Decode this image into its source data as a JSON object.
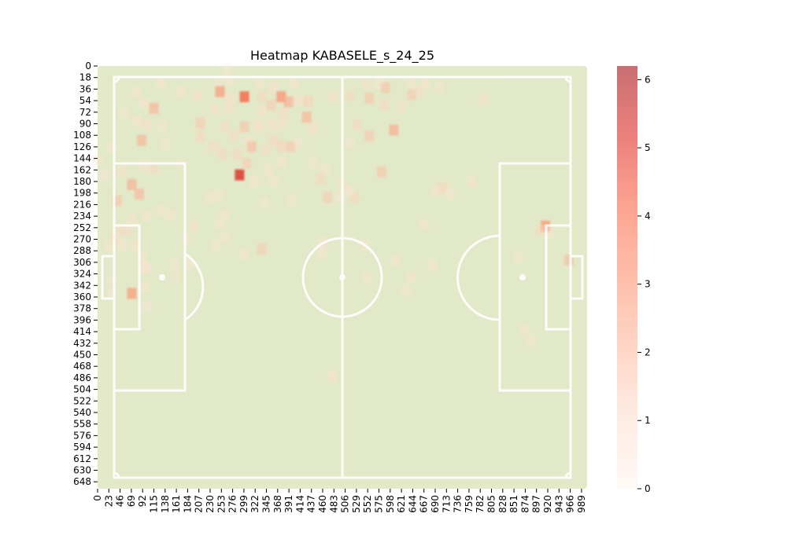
{
  "chart_data": {
    "type": "heatmap",
    "title": "Heatmap KABASELE_s_24_25",
    "xlabel": "",
    "ylabel": "",
    "x_tick_labels": [
      "0",
      "23",
      "46",
      "69",
      "92",
      "115",
      "138",
      "161",
      "184",
      "207",
      "230",
      "253",
      "276",
      "299",
      "322",
      "345",
      "368",
      "391",
      "414",
      "437",
      "460",
      "483",
      "506",
      "529",
      "552",
      "575",
      "598",
      "621",
      "644",
      "667",
      "690",
      "713",
      "736",
      "759",
      "782",
      "805",
      "828",
      "851",
      "874",
      "897",
      "920",
      "943",
      "966",
      "989"
    ],
    "y_tick_labels": [
      "0",
      "18",
      "36",
      "54",
      "72",
      "90",
      "108",
      "126",
      "144",
      "162",
      "180",
      "198",
      "216",
      "234",
      "252",
      "270",
      "288",
      "306",
      "324",
      "342",
      "360",
      "378",
      "396",
      "414",
      "432",
      "450",
      "468",
      "486",
      "504",
      "522",
      "540",
      "558",
      "576",
      "594",
      "612",
      "630",
      "648"
    ],
    "xlim": [
      0,
      1000
    ],
    "ylim": [
      0,
      660
    ],
    "colorbar": {
      "min": 0,
      "max": 6.2,
      "ticks": [
        "0",
        "1",
        "2",
        "3",
        "4",
        "5",
        "6"
      ]
    },
    "colors": {
      "pitch": "#e2e9c8",
      "lines": "#ffffff",
      "cmap_low": "#fff5f0",
      "cmap_mid": "#fc9272",
      "cmap_high": "#a50f15"
    },
    "cells": [
      {
        "x": 265,
        "y": 5,
        "v": 0.6
      },
      {
        "x": 270,
        "y": 22,
        "v": 0.8
      },
      {
        "x": 245,
        "y": 26,
        "v": 0.9
      },
      {
        "x": 130,
        "y": 27,
        "v": 0.9
      },
      {
        "x": 330,
        "y": 27,
        "v": 1.0
      },
      {
        "x": 360,
        "y": 33,
        "v": 1.1
      },
      {
        "x": 400,
        "y": 28,
        "v": 1.0
      },
      {
        "x": 550,
        "y": 27,
        "v": 1.1
      },
      {
        "x": 575,
        "y": 27,
        "v": 0.8
      },
      {
        "x": 640,
        "y": 27,
        "v": 1.0
      },
      {
        "x": 670,
        "y": 27,
        "v": 0.9
      },
      {
        "x": 700,
        "y": 33,
        "v": 0.9
      },
      {
        "x": 250,
        "y": 40,
        "v": 3.0
      },
      {
        "x": 300,
        "y": 48,
        "v": 4.2
      },
      {
        "x": 80,
        "y": 41,
        "v": 1.0
      },
      {
        "x": 170,
        "y": 41,
        "v": 1.0
      },
      {
        "x": 205,
        "y": 46,
        "v": 1.2
      },
      {
        "x": 270,
        "y": 51,
        "v": 1.1
      },
      {
        "x": 335,
        "y": 48,
        "v": 1.5
      },
      {
        "x": 375,
        "y": 48,
        "v": 3.2
      },
      {
        "x": 390,
        "y": 56,
        "v": 2.5
      },
      {
        "x": 355,
        "y": 61,
        "v": 1.8
      },
      {
        "x": 430,
        "y": 55,
        "v": 1.6
      },
      {
        "x": 480,
        "y": 48,
        "v": 1.2
      },
      {
        "x": 515,
        "y": 47,
        "v": 1.4
      },
      {
        "x": 555,
        "y": 50,
        "v": 2.0
      },
      {
        "x": 588,
        "y": 34,
        "v": 2.0
      },
      {
        "x": 585,
        "y": 60,
        "v": 1.4
      },
      {
        "x": 620,
        "y": 64,
        "v": 1.1
      },
      {
        "x": 642,
        "y": 45,
        "v": 1.8
      },
      {
        "x": 657,
        "y": 39,
        "v": 1.2
      },
      {
        "x": 787,
        "y": 52,
        "v": 1.1
      },
      {
        "x": 410,
        "y": 53,
        "v": 1.2
      },
      {
        "x": 95,
        "y": 58,
        "v": 0.9
      },
      {
        "x": 115,
        "y": 66,
        "v": 2.4
      },
      {
        "x": 240,
        "y": 67,
        "v": 1.1
      },
      {
        "x": 270,
        "y": 66,
        "v": 1.1
      },
      {
        "x": 335,
        "y": 70,
        "v": 1.2
      },
      {
        "x": 380,
        "y": 73,
        "v": 1.3
      },
      {
        "x": 427,
        "y": 80,
        "v": 2.4
      },
      {
        "x": 55,
        "y": 75,
        "v": 1.0
      },
      {
        "x": 80,
        "y": 86,
        "v": 1.0
      },
      {
        "x": 100,
        "y": 92,
        "v": 1.2
      },
      {
        "x": 132,
        "y": 95,
        "v": 1.0
      },
      {
        "x": 210,
        "y": 89,
        "v": 1.8
      },
      {
        "x": 260,
        "y": 95,
        "v": 1.3
      },
      {
        "x": 300,
        "y": 95,
        "v": 2.0
      },
      {
        "x": 328,
        "y": 93,
        "v": 1.2
      },
      {
        "x": 355,
        "y": 92,
        "v": 1.1
      },
      {
        "x": 375,
        "y": 90,
        "v": 1.2
      },
      {
        "x": 440,
        "y": 97,
        "v": 1.2
      },
      {
        "x": 530,
        "y": 92,
        "v": 1.4
      },
      {
        "x": 555,
        "y": 109,
        "v": 1.9
      },
      {
        "x": 605,
        "y": 100,
        "v": 2.6
      },
      {
        "x": 90,
        "y": 116,
        "v": 2.4
      },
      {
        "x": 210,
        "y": 110,
        "v": 1.5
      },
      {
        "x": 278,
        "y": 109,
        "v": 1.3
      },
      {
        "x": 310,
        "y": 118,
        "v": 1.0
      },
      {
        "x": 360,
        "y": 116,
        "v": 1.4
      },
      {
        "x": 375,
        "y": 125,
        "v": 1.6
      },
      {
        "x": 395,
        "y": 126,
        "v": 1.9
      },
      {
        "x": 30,
        "y": 128,
        "v": 0.9
      },
      {
        "x": 140,
        "y": 122,
        "v": 0.9
      },
      {
        "x": 235,
        "y": 126,
        "v": 1.3
      },
      {
        "x": 255,
        "y": 137,
        "v": 1.4
      },
      {
        "x": 285,
        "y": 137,
        "v": 1.4
      },
      {
        "x": 315,
        "y": 126,
        "v": 2.2
      },
      {
        "x": 345,
        "y": 130,
        "v": 1.3
      },
      {
        "x": 410,
        "y": 122,
        "v": 1.0
      },
      {
        "x": 515,
        "y": 120,
        "v": 1.0
      },
      {
        "x": 0,
        "y": 147,
        "v": 0.9
      },
      {
        "x": 95,
        "y": 155,
        "v": 1.0
      },
      {
        "x": 115,
        "y": 160,
        "v": 1.3
      },
      {
        "x": 290,
        "y": 170,
        "v": 5.2
      },
      {
        "x": 305,
        "y": 152,
        "v": 1.8
      },
      {
        "x": 350,
        "y": 162,
        "v": 1.0
      },
      {
        "x": 375,
        "y": 150,
        "v": 1.0
      },
      {
        "x": 440,
        "y": 152,
        "v": 1.0
      },
      {
        "x": 465,
        "y": 162,
        "v": 1.0
      },
      {
        "x": 580,
        "y": 165,
        "v": 2.0
      },
      {
        "x": 15,
        "y": 170,
        "v": 0.8
      },
      {
        "x": 50,
        "y": 165,
        "v": 1.1
      },
      {
        "x": 70,
        "y": 185,
        "v": 2.5
      },
      {
        "x": 85,
        "y": 200,
        "v": 2.3
      },
      {
        "x": 170,
        "y": 155,
        "v": 0.9
      },
      {
        "x": 320,
        "y": 180,
        "v": 1.0
      },
      {
        "x": 360,
        "y": 180,
        "v": 1.0
      },
      {
        "x": 455,
        "y": 176,
        "v": 1.5
      },
      {
        "x": 500,
        "y": 185,
        "v": 1.1
      },
      {
        "x": 705,
        "y": 190,
        "v": 1.5
      },
      {
        "x": 690,
        "y": 195,
        "v": 1.0
      },
      {
        "x": 720,
        "y": 200,
        "v": 1.0
      },
      {
        "x": 765,
        "y": 180,
        "v": 1.0
      },
      {
        "x": 40,
        "y": 210,
        "v": 2.0
      },
      {
        "x": 230,
        "y": 205,
        "v": 1.0
      },
      {
        "x": 250,
        "y": 202,
        "v": 1.0
      },
      {
        "x": 470,
        "y": 205,
        "v": 1.8
      },
      {
        "x": 495,
        "y": 205,
        "v": 1.0
      },
      {
        "x": 525,
        "y": 205,
        "v": 1.5
      },
      {
        "x": 515,
        "y": 195,
        "v": 1.0
      },
      {
        "x": 395,
        "y": 210,
        "v": 1.0
      },
      {
        "x": 340,
        "y": 213,
        "v": 0.8
      },
      {
        "x": 130,
        "y": 226,
        "v": 1.0
      },
      {
        "x": 150,
        "y": 233,
        "v": 1.0
      },
      {
        "x": 70,
        "y": 240,
        "v": 1.0
      },
      {
        "x": 100,
        "y": 235,
        "v": 0.9
      },
      {
        "x": 260,
        "y": 233,
        "v": 1.0
      },
      {
        "x": 195,
        "y": 250,
        "v": 1.1
      },
      {
        "x": 250,
        "y": 248,
        "v": 0.9
      },
      {
        "x": 45,
        "y": 255,
        "v": 1.3
      },
      {
        "x": 60,
        "y": 256,
        "v": 1.3
      },
      {
        "x": 35,
        "y": 268,
        "v": 1.2
      },
      {
        "x": 180,
        "y": 270,
        "v": 1.0
      },
      {
        "x": 262,
        "y": 268,
        "v": 1.0
      },
      {
        "x": 665,
        "y": 248,
        "v": 1.0
      },
      {
        "x": 915,
        "y": 250,
        "v": 3.2
      },
      {
        "x": 905,
        "y": 256,
        "v": 1.4
      },
      {
        "x": 925,
        "y": 260,
        "v": 1.0
      },
      {
        "x": 22,
        "y": 280,
        "v": 1.0
      },
      {
        "x": 50,
        "y": 280,
        "v": 1.0
      },
      {
        "x": 75,
        "y": 280,
        "v": 1.0
      },
      {
        "x": 240,
        "y": 280,
        "v": 0.9
      },
      {
        "x": 300,
        "y": 293,
        "v": 0.9
      },
      {
        "x": 335,
        "y": 286,
        "v": 1.8
      },
      {
        "x": 456,
        "y": 292,
        "v": 1.0
      },
      {
        "x": 460,
        "y": 275,
        "v": 1.0
      },
      {
        "x": 545,
        "y": 280,
        "v": 1.0
      },
      {
        "x": 90,
        "y": 298,
        "v": 1.0
      },
      {
        "x": 95,
        "y": 315,
        "v": 1.0
      },
      {
        "x": 160,
        "y": 310,
        "v": 0.9
      },
      {
        "x": 190,
        "y": 310,
        "v": 0.8
      },
      {
        "x": 610,
        "y": 303,
        "v": 0.9
      },
      {
        "x": 685,
        "y": 310,
        "v": 0.9
      },
      {
        "x": 860,
        "y": 298,
        "v": 1.0
      },
      {
        "x": 963,
        "y": 303,
        "v": 2.2
      },
      {
        "x": 100,
        "y": 316,
        "v": 1.0
      },
      {
        "x": 160,
        "y": 330,
        "v": 1.0
      },
      {
        "x": 550,
        "y": 330,
        "v": 1.0
      },
      {
        "x": 640,
        "y": 330,
        "v": 1.0
      },
      {
        "x": 30,
        "y": 335,
        "v": 0.9
      },
      {
        "x": 95,
        "y": 345,
        "v": 0.9
      },
      {
        "x": 70,
        "y": 355,
        "v": 3.0
      },
      {
        "x": 30,
        "y": 355,
        "v": 0.8
      },
      {
        "x": 630,
        "y": 350,
        "v": 0.9
      },
      {
        "x": 100,
        "y": 375,
        "v": 0.8
      },
      {
        "x": 870,
        "y": 410,
        "v": 1.0
      },
      {
        "x": 885,
        "y": 428,
        "v": 1.0
      },
      {
        "x": 480,
        "y": 485,
        "v": 1.0
      }
    ]
  }
}
